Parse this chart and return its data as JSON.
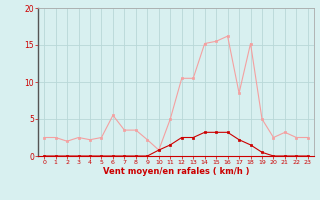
{
  "x": [
    0,
    1,
    2,
    3,
    4,
    5,
    6,
    7,
    8,
    9,
    10,
    11,
    12,
    13,
    14,
    15,
    16,
    17,
    18,
    19,
    20,
    21,
    22,
    23
  ],
  "rafales": [
    2.5,
    2.5,
    2.0,
    2.5,
    2.2,
    2.5,
    5.5,
    3.5,
    3.5,
    2.2,
    0.8,
    5.0,
    10.5,
    10.5,
    15.2,
    15.5,
    16.2,
    8.5,
    15.2,
    5.0,
    2.5,
    3.2,
    2.5,
    2.5
  ],
  "moyen": [
    0.0,
    0.0,
    0.0,
    0.0,
    0.0,
    0.0,
    0.0,
    0.0,
    0.0,
    0.0,
    0.8,
    1.5,
    2.5,
    2.5,
    3.2,
    3.2,
    3.2,
    2.2,
    1.5,
    0.5,
    0.0,
    0.0,
    0.0,
    0.0
  ],
  "rafales_color": "#f4a0a0",
  "moyen_color": "#cc0000",
  "bg_color": "#d8f0f0",
  "grid_color": "#b8d8d8",
  "xlabel": "Vent moyen/en rafales ( km/h )",
  "ylim": [
    0,
    20
  ],
  "yticks": [
    0,
    5,
    10,
    15,
    20
  ],
  "xticks": [
    0,
    1,
    2,
    3,
    4,
    5,
    6,
    7,
    8,
    9,
    10,
    11,
    12,
    13,
    14,
    15,
    16,
    17,
    18,
    19,
    20,
    21,
    22,
    23
  ]
}
